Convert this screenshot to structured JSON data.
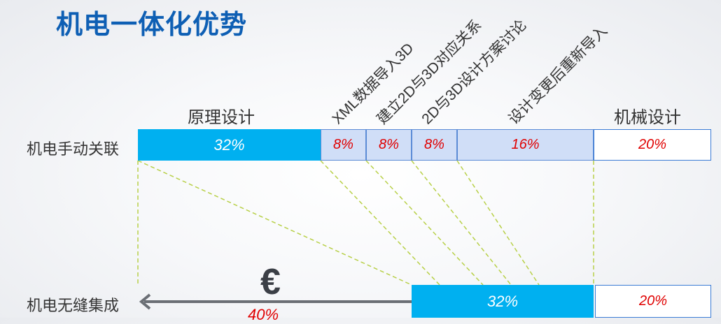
{
  "title": "机电一体化优势",
  "categories": {
    "schematic": "原理设计",
    "xml_import": "XML数据导入3D",
    "relation": "建立2D与3D对应关系",
    "discussion": "2D与3D设计方案讨论",
    "reimport": "设计变更后重新导入",
    "mechanical": "机械设计"
  },
  "rows": {
    "manual": {
      "label": "机电手动关联",
      "segments": [
        "32%",
        "8%",
        "8%",
        "8%",
        "16%",
        "20%"
      ]
    },
    "seamless": {
      "label": "机电无缝集成",
      "segments": [
        "32%",
        "20%"
      ],
      "saving": "40%",
      "currency": "€"
    }
  },
  "colors": {
    "title": "#0e5fb4",
    "main_bar": "#00b0f0",
    "light_bar": "#d0def7",
    "border": "#3a7bd5",
    "pct_red": "#e00000",
    "dash": "#b8d048"
  }
}
